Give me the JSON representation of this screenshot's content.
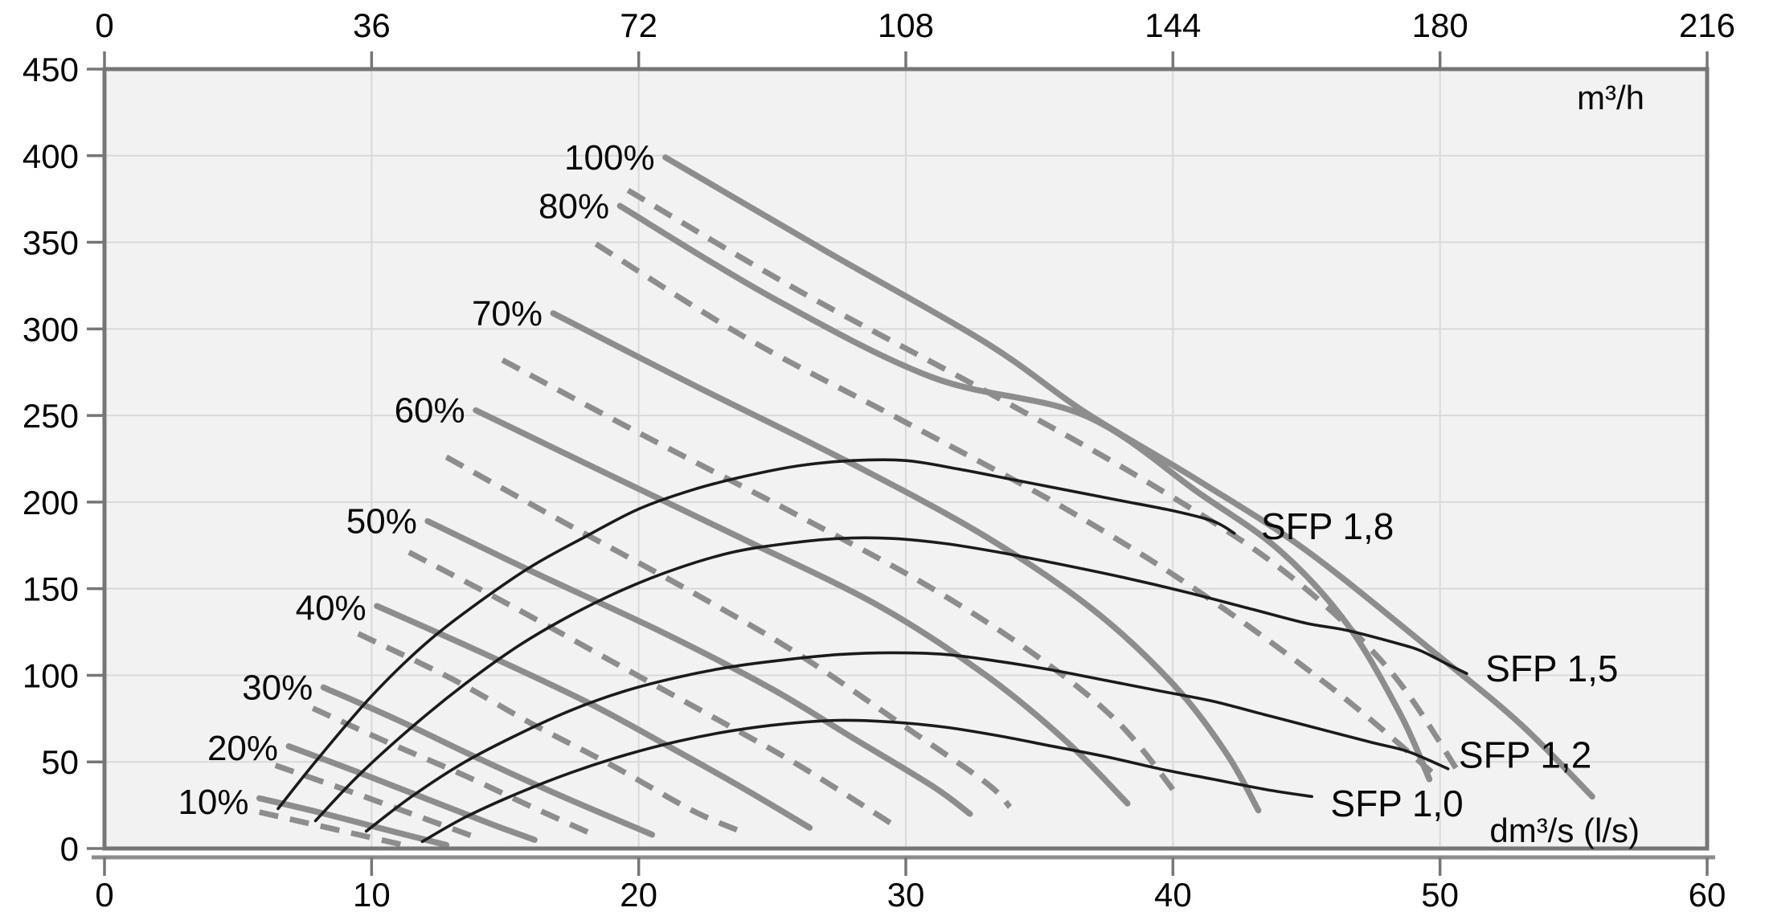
{
  "chart_data": {
    "type": "line",
    "title": "",
    "x_axis_bottom": {
      "label": "dm³/s (l/s)",
      "ticks": [
        0,
        10,
        20,
        30,
        40,
        50,
        60
      ],
      "range": [
        0,
        60
      ]
    },
    "x_axis_top": {
      "label": "m³/h",
      "ticks": [
        0,
        36,
        72,
        108,
        144,
        180,
        216
      ],
      "range": [
        0,
        216
      ]
    },
    "y_axis": {
      "label": "",
      "ticks": [
        450,
        400,
        350,
        300,
        250,
        200,
        150,
        100,
        50,
        0
      ],
      "range": [
        0,
        450
      ]
    },
    "grid": true,
    "legend_position": "none",
    "colors": {
      "plot_background": "#f2f2f2",
      "grid_line": "#d9d9d9",
      "border": "#767676",
      "fan_curve": "#8d8d8d",
      "sfp_curve": "#1b1b1b",
      "text": "#000000"
    },
    "series": [
      {
        "name": "100%",
        "style": "solid",
        "points": [
          [
            21,
            399
          ],
          [
            27,
            345
          ],
          [
            33,
            292
          ],
          [
            36.7,
            252
          ],
          [
            41,
            212
          ],
          [
            45,
            172
          ],
          [
            49.8,
            113
          ],
          [
            53,
            72
          ],
          [
            55.7,
            30
          ]
        ]
      },
      {
        "name": "80%",
        "style": "solid",
        "points": [
          [
            19.3,
            371
          ],
          [
            25,
            318
          ],
          [
            31,
            272
          ],
          [
            36.7,
            250
          ],
          [
            41,
            205
          ],
          [
            44,
            172
          ],
          [
            46.5,
            130
          ],
          [
            48.5,
            78
          ],
          [
            49.6,
            40
          ]
        ]
      },
      {
        "name": "70%",
        "style": "solid",
        "points": [
          [
            16.8,
            309
          ],
          [
            22,
            268
          ],
          [
            28,
            222
          ],
          [
            33,
            180
          ],
          [
            37,
            138
          ],
          [
            40,
            95
          ],
          [
            42,
            55
          ],
          [
            43.2,
            22
          ]
        ]
      },
      {
        "name": "60%",
        "style": "solid",
        "points": [
          [
            13.9,
            253
          ],
          [
            19,
            215
          ],
          [
            24,
            178
          ],
          [
            29,
            140
          ],
          [
            33,
            100
          ],
          [
            36,
            62
          ],
          [
            38.3,
            26
          ]
        ]
      },
      {
        "name": "50%",
        "style": "solid",
        "points": [
          [
            12.1,
            189
          ],
          [
            16,
            160
          ],
          [
            21,
            124
          ],
          [
            25,
            92
          ],
          [
            28,
            64
          ],
          [
            31,
            36
          ],
          [
            32.4,
            20
          ]
        ]
      },
      {
        "name": "40%",
        "style": "solid",
        "points": [
          [
            10.2,
            140
          ],
          [
            14,
            114
          ],
          [
            18,
            85
          ],
          [
            21,
            60
          ],
          [
            24,
            34
          ],
          [
            26.4,
            12
          ]
        ]
      },
      {
        "name": "30%",
        "style": "solid",
        "points": [
          [
            8.2,
            93
          ],
          [
            11,
            74
          ],
          [
            14,
            52
          ],
          [
            17,
            31
          ],
          [
            20.5,
            8
          ]
        ]
      },
      {
        "name": "20%",
        "style": "solid",
        "points": [
          [
            6.9,
            59
          ],
          [
            9.5,
            44
          ],
          [
            12,
            29
          ],
          [
            14.5,
            14
          ],
          [
            16.1,
            5
          ]
        ]
      },
      {
        "name": "10%",
        "style": "solid",
        "points": [
          [
            5.8,
            29
          ],
          [
            8,
            21
          ],
          [
            10.5,
            11
          ],
          [
            12.8,
            2
          ]
        ]
      },
      {
        "name": "100% dashed",
        "style": "dashed",
        "points": [
          [
            19.6,
            380
          ],
          [
            26,
            322
          ],
          [
            33,
            264
          ],
          [
            39,
            212
          ],
          [
            44,
            162
          ],
          [
            48,
            105
          ],
          [
            50.7,
            44
          ]
        ]
      },
      {
        "name": "80% dashed",
        "style": "dashed",
        "points": [
          [
            18.4,
            349
          ],
          [
            24,
            295
          ],
          [
            30,
            246
          ],
          [
            36,
            196
          ],
          [
            41,
            148
          ],
          [
            46,
            92
          ],
          [
            50,
            40
          ]
        ]
      },
      {
        "name": "70% dashed",
        "style": "dashed",
        "points": [
          [
            14.9,
            282
          ],
          [
            20,
            240
          ],
          [
            26,
            192
          ],
          [
            31,
            150
          ],
          [
            35,
            110
          ],
          [
            38,
            72
          ],
          [
            40.2,
            30
          ]
        ]
      },
      {
        "name": "60% dashed",
        "style": "dashed",
        "points": [
          [
            12.8,
            226
          ],
          [
            17,
            190
          ],
          [
            22,
            148
          ],
          [
            26,
            112
          ],
          [
            30,
            70
          ],
          [
            33,
            38
          ],
          [
            33.9,
            24
          ]
        ]
      },
      {
        "name": "50% dashed",
        "style": "dashed",
        "points": [
          [
            11.4,
            171
          ],
          [
            15,
            142
          ],
          [
            19,
            108
          ],
          [
            23,
            74
          ],
          [
            26,
            48
          ],
          [
            29.5,
            14
          ]
        ]
      },
      {
        "name": "40% dashed",
        "style": "dashed",
        "points": [
          [
            9.5,
            124
          ],
          [
            13,
            98
          ],
          [
            16,
            72
          ],
          [
            19,
            48
          ],
          [
            22,
            22
          ],
          [
            23.8,
            10
          ]
        ]
      },
      {
        "name": "30% dashed",
        "style": "dashed",
        "points": [
          [
            7.8,
            81
          ],
          [
            10.5,
            62
          ],
          [
            13.5,
            42
          ],
          [
            16,
            24
          ],
          [
            18.3,
            8
          ]
        ]
      },
      {
        "name": "20% dashed",
        "style": "dashed",
        "points": [
          [
            6.4,
            48
          ],
          [
            9,
            34
          ],
          [
            11.5,
            20
          ],
          [
            13.8,
            7
          ]
        ]
      },
      {
        "name": "10% dashed",
        "style": "dashed",
        "points": [
          [
            5.8,
            21
          ],
          [
            7.5,
            15
          ],
          [
            9.5,
            8
          ],
          [
            11.2,
            2
          ]
        ]
      },
      {
        "name": "SFP 1,8",
        "style": "sfp",
        "points": [
          [
            6.5,
            23
          ],
          [
            8,
            52
          ],
          [
            10,
            88
          ],
          [
            12,
            118
          ],
          [
            14,
            142
          ],
          [
            16,
            163
          ],
          [
            18,
            180
          ],
          [
            20,
            196
          ],
          [
            22,
            207
          ],
          [
            24,
            215
          ],
          [
            26,
            221
          ],
          [
            28,
            224
          ],
          [
            30,
            224
          ],
          [
            32,
            219
          ],
          [
            34,
            213
          ],
          [
            36,
            207
          ],
          [
            38,
            201
          ],
          [
            40,
            195
          ],
          [
            41.5,
            189
          ],
          [
            42.3,
            182
          ]
        ]
      },
      {
        "name": "SFP 1,5",
        "style": "sfp",
        "points": [
          [
            7.9,
            16
          ],
          [
            9.5,
            42
          ],
          [
            11.5,
            70
          ],
          [
            13.5,
            95
          ],
          [
            15.5,
            117
          ],
          [
            17.5,
            135
          ],
          [
            19.5,
            150
          ],
          [
            21.5,
            162
          ],
          [
            23.5,
            171
          ],
          [
            25.5,
            176
          ],
          [
            27.5,
            179
          ],
          [
            29.5,
            179
          ],
          [
            31.5,
            176
          ],
          [
            33.5,
            171
          ],
          [
            35.5,
            165
          ],
          [
            38,
            157
          ],
          [
            40.5,
            148
          ],
          [
            43,
            138
          ],
          [
            45,
            130
          ],
          [
            46.5,
            126
          ],
          [
            48.5,
            118
          ],
          [
            49.3,
            114
          ],
          [
            50.2,
            107
          ],
          [
            51,
            101
          ]
        ]
      },
      {
        "name": "SFP 1,2",
        "style": "sfp",
        "points": [
          [
            9.8,
            10
          ],
          [
            11.5,
            30
          ],
          [
            13.5,
            50
          ],
          [
            15.5,
            66
          ],
          [
            17.5,
            80
          ],
          [
            19.5,
            91
          ],
          [
            21.5,
            99
          ],
          [
            23.5,
            105
          ],
          [
            25.5,
            109
          ],
          [
            27.5,
            112
          ],
          [
            29.5,
            113
          ],
          [
            31.5,
            112
          ],
          [
            33.5,
            108
          ],
          [
            35.5,
            103
          ],
          [
            37.5,
            97
          ],
          [
            39.5,
            91
          ],
          [
            41.5,
            85
          ],
          [
            43.5,
            77
          ],
          [
            45.5,
            69
          ],
          [
            47.5,
            61
          ],
          [
            48.8,
            56
          ],
          [
            50.3,
            46
          ]
        ]
      },
      {
        "name": "SFP 1,0",
        "style": "sfp",
        "points": [
          [
            11.9,
            4
          ],
          [
            13.5,
            18
          ],
          [
            15.5,
            32
          ],
          [
            17.5,
            44
          ],
          [
            19.5,
            54
          ],
          [
            21.5,
            62
          ],
          [
            23.5,
            68
          ],
          [
            25.5,
            72
          ],
          [
            27.5,
            74
          ],
          [
            29.5,
            73
          ],
          [
            31.5,
            70
          ],
          [
            33.5,
            65
          ],
          [
            35.5,
            59
          ],
          [
            37.5,
            53
          ],
          [
            39.5,
            46
          ],
          [
            41.5,
            40
          ],
          [
            43.5,
            34
          ],
          [
            45.2,
            30
          ]
        ]
      }
    ],
    "annotations": {
      "speed_labels": [
        {
          "text": "100%",
          "q": 20.6,
          "p": 399
        },
        {
          "text": "80%",
          "q": 18.9,
          "p": 371
        },
        {
          "text": "70%",
          "q": 16.4,
          "p": 309
        },
        {
          "text": "60%",
          "q": 13.5,
          "p": 253
        },
        {
          "text": "50%",
          "q": 11.7,
          "p": 189
        },
        {
          "text": "40%",
          "q": 9.8,
          "p": 139
        },
        {
          "text": "30%",
          "q": 7.8,
          "p": 93
        },
        {
          "text": "20%",
          "q": 6.5,
          "p": 58
        },
        {
          "text": "10%",
          "q": 5.4,
          "p": 27
        }
      ],
      "sfp_labels": [
        {
          "text": "SFP 1,8",
          "q": 43.3,
          "p": 186
        },
        {
          "text": "SFP 1,5",
          "q": 51.7,
          "p": 104
        },
        {
          "text": "SFP 1,2",
          "q": 50.7,
          "p": 54
        },
        {
          "text": "SFP 1,0",
          "q": 45.9,
          "p": 26
        }
      ]
    }
  }
}
